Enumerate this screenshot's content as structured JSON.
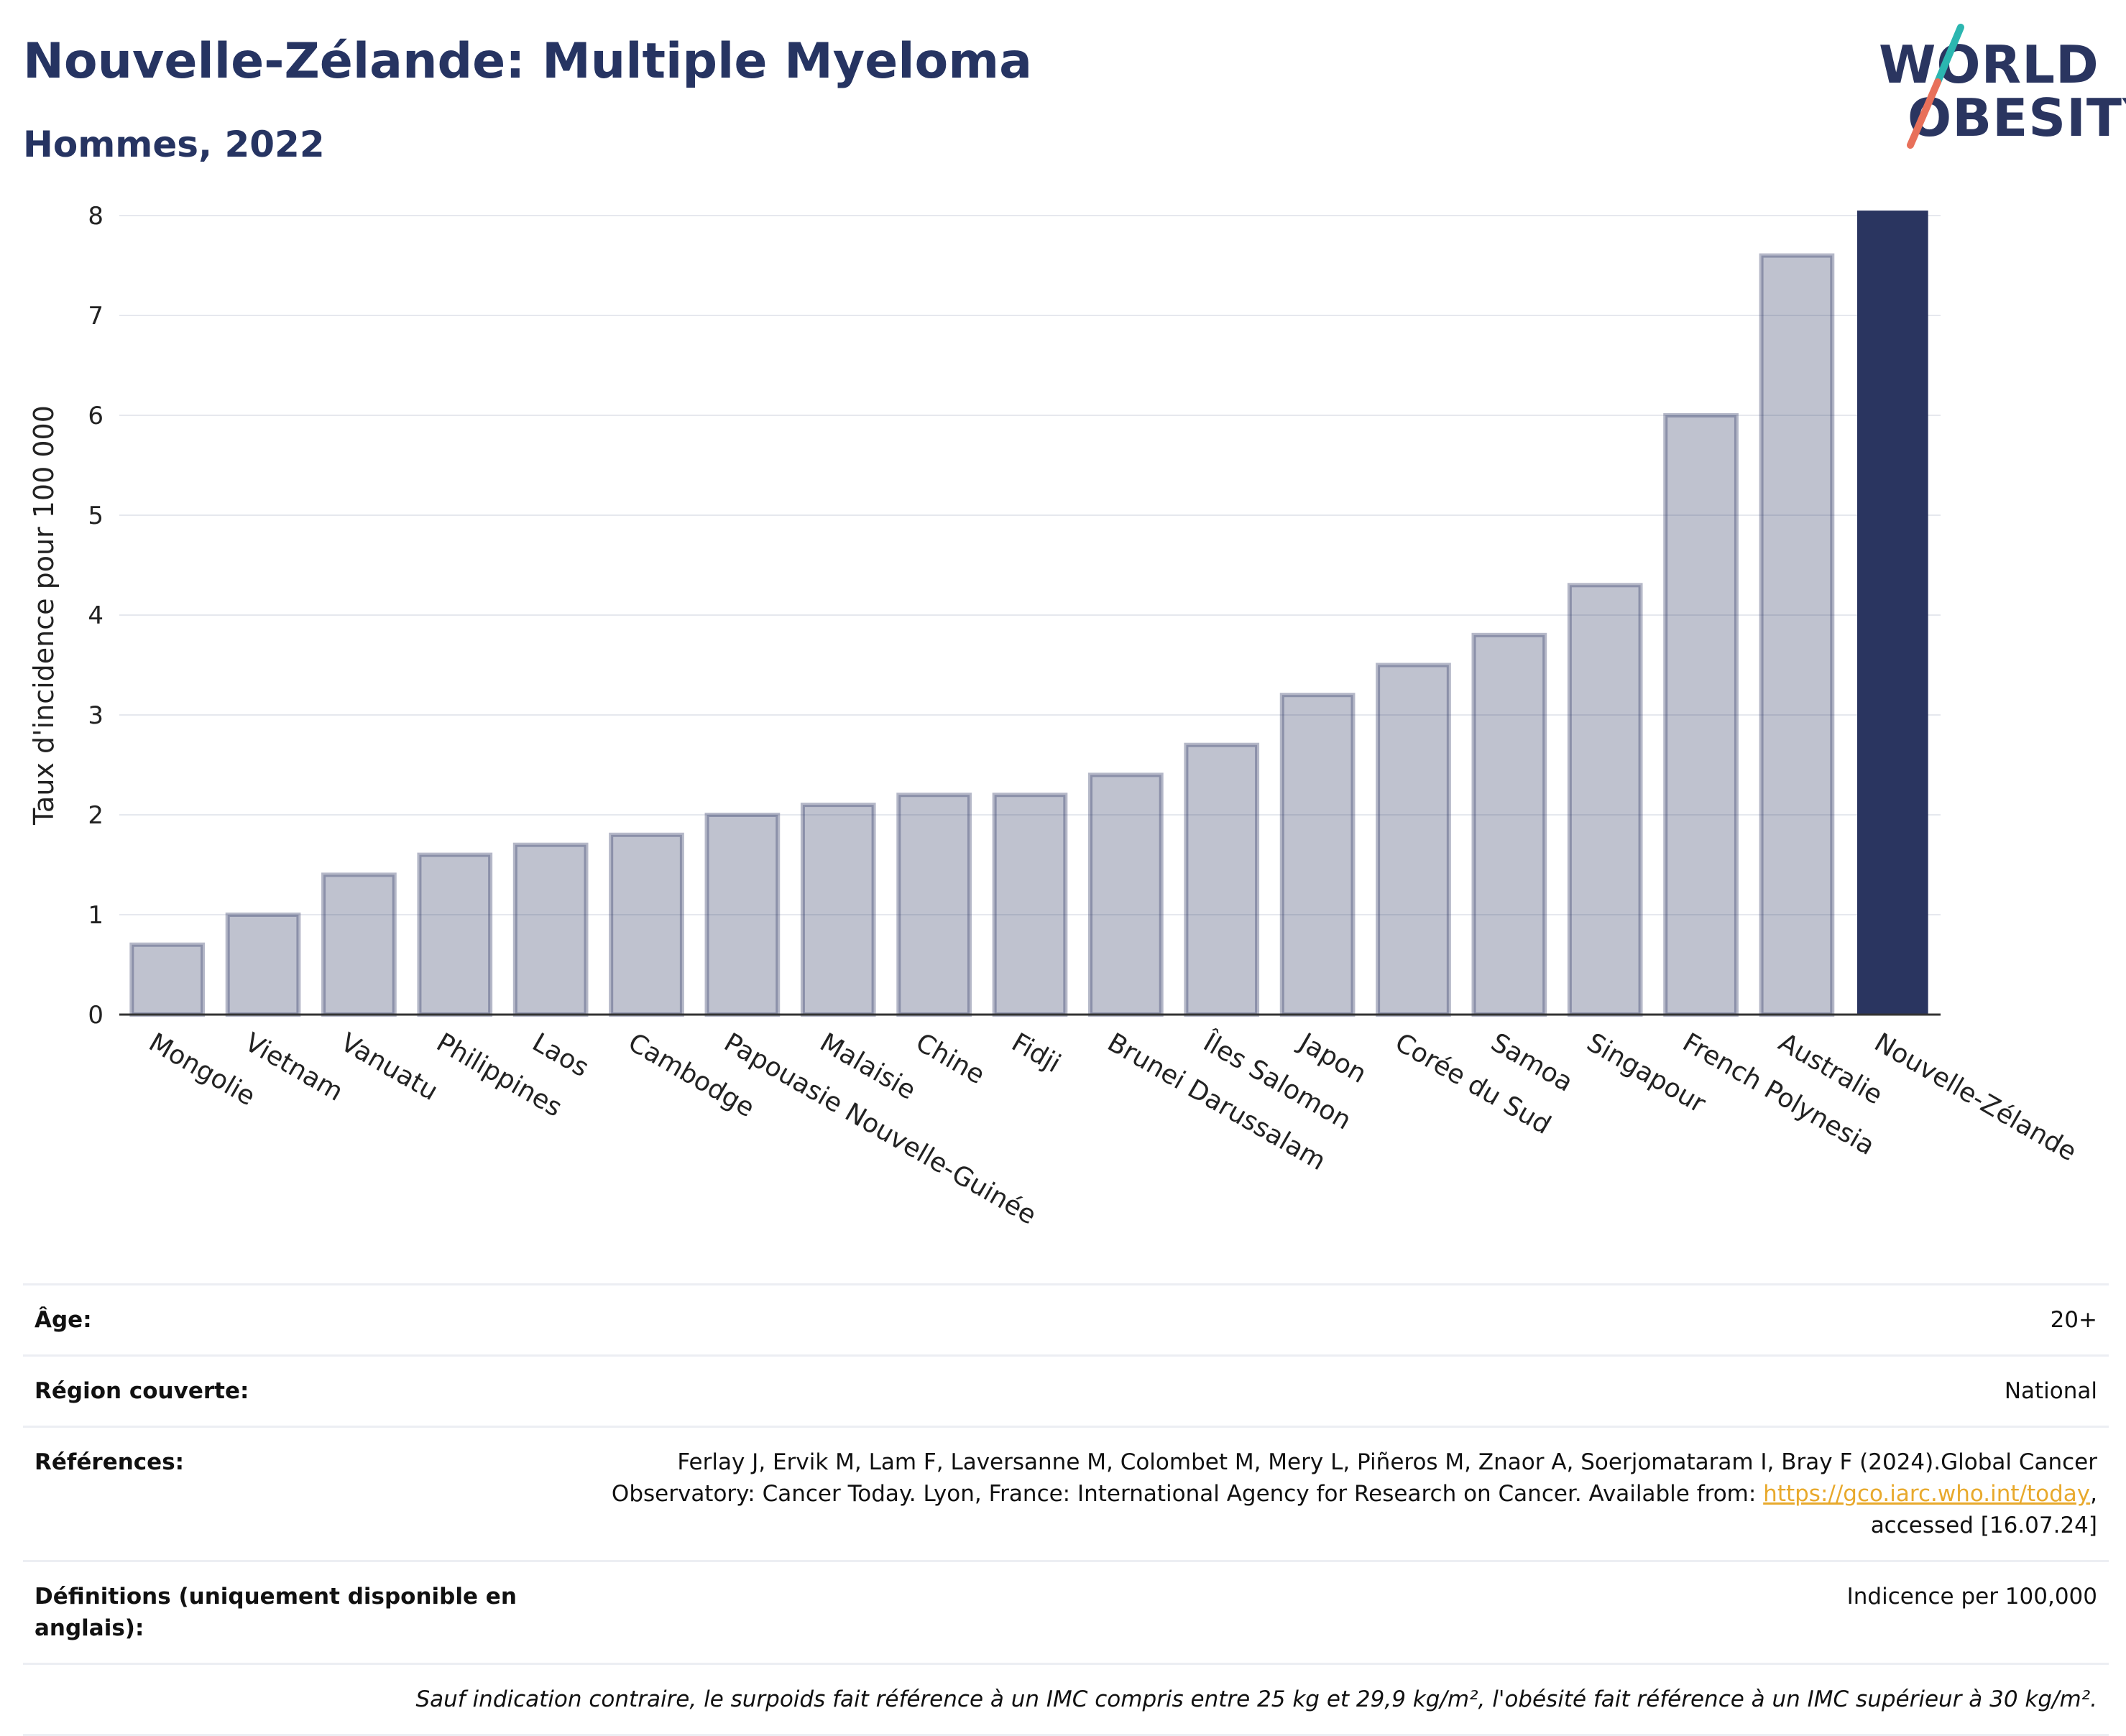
{
  "header": {
    "title": "Nouvelle-Zélande: Multiple Myeloma",
    "subtitle": "Hommes, 2022"
  },
  "logo": {
    "line1": "WORLD",
    "line2": "OBESITY"
  },
  "colors": {
    "bar": "#2a3560",
    "bar_muted": "#2a3560",
    "grid": "#e6e8ee",
    "axis": "#333333"
  },
  "chart_data": {
    "type": "bar",
    "ylabel": "Taux d'incidence pour 100 000",
    "xlabel": "",
    "ylim": [
      0,
      8
    ],
    "yticks": [
      0,
      1,
      2,
      3,
      4,
      5,
      6,
      7,
      8
    ],
    "grid": true,
    "highlight": "Nouvelle-Zélande",
    "categories": [
      "Mongolie",
      "Vietnam",
      "Vanuatu",
      "Philippines",
      "Laos",
      "Cambodge",
      "Papouasie Nouvelle-Guinée",
      "Malaisie",
      "Chine",
      "Fidji",
      "Brunei Darussalam",
      "Îles Salomon",
      "Japon",
      "Corée du Sud",
      "Samoa",
      "Singapour",
      "French Polynesia",
      "Australie",
      "Nouvelle-Zélande"
    ],
    "values": [
      0.7,
      1.0,
      1.4,
      1.6,
      1.7,
      1.8,
      2.0,
      2.1,
      2.2,
      2.2,
      2.4,
      2.7,
      3.2,
      3.5,
      3.8,
      4.3,
      6.0,
      7.6,
      8.05
    ]
  },
  "info": {
    "age_label": "Âge:",
    "age_value": "20+",
    "region_label": "Région couverte:",
    "region_value": "National",
    "refs_label": "Références:",
    "refs_text_1": "Ferlay J, Ervik M, Lam F, Laversanne M, Colombet M, Mery L, Piñeros M, Znaor A, Soerjomataram I, Bray F (2024).Global Cancer Observatory: Cancer Today. Lyon, France: International Agency for Research on Cancer. Available from: ",
    "refs_link": "https://gco.iarc.who.int/today",
    "refs_text_2": ", accessed [16.07.24]",
    "defs_label": "Définitions (uniquement disponible en anglais):",
    "defs_value": "Indicence per 100,000",
    "note": "Sauf indication contraire, le surpoids fait référence à un IMC compris entre 25 kg et 29,9 kg/m², l'obésité fait référence à un IMC supérieur à 30 kg/m²."
  }
}
